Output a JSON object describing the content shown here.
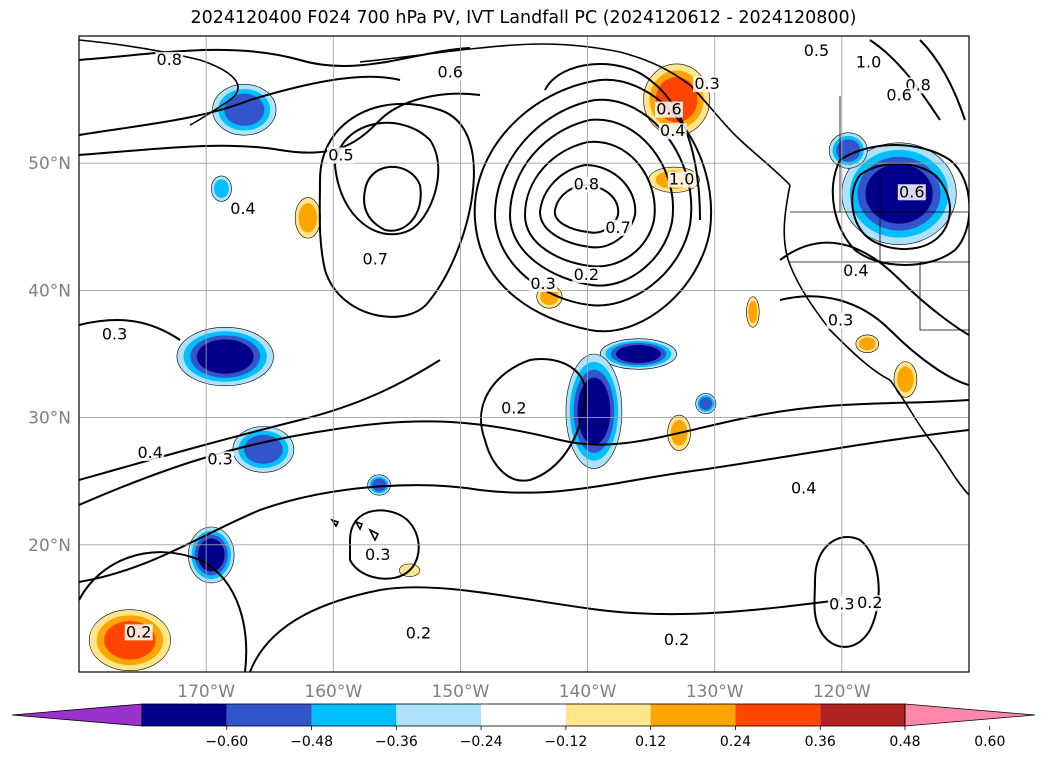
{
  "title": "2024120400 F024 700 hPa PV, IVT Landfall PC (2024120612 - 2024120800)",
  "map": {
    "lat_labels": [
      "50°N",
      "40°N",
      "30°N",
      "20°N"
    ],
    "lon_labels": [
      "170°W",
      "160°W",
      "150°W",
      "140°W",
      "130°W",
      "120°W"
    ],
    "gridlines": true
  },
  "contour_labels": [
    {
      "text": "0.8",
      "lon": -172.9,
      "lat": 57.8
    },
    {
      "text": "0.6",
      "lon": -150.8,
      "lat": 56.8
    },
    {
      "text": "0.3",
      "lon": -130.6,
      "lat": 55.9
    },
    {
      "text": "0.5",
      "lon": -159.4,
      "lat": 50.3
    },
    {
      "text": "0.4",
      "lon": -167.1,
      "lat": 46.1
    },
    {
      "text": "0.7",
      "lon": -156.7,
      "lat": 42.1
    },
    {
      "text": "0.6",
      "lon": -133.6,
      "lat": 53.9
    },
    {
      "text": "0.4",
      "lon": -133.3,
      "lat": 52.2
    },
    {
      "text": "1.0",
      "lon": -132.6,
      "lat": 48.4
    },
    {
      "text": "0.8",
      "lon": -140.1,
      "lat": 48.0
    },
    {
      "text": "0.7",
      "lon": -137.6,
      "lat": 44.6
    },
    {
      "text": "0.3",
      "lon": -143.5,
      "lat": 40.2
    },
    {
      "text": "0.2",
      "lon": -140.1,
      "lat": 40.9
    },
    {
      "text": "0.5",
      "lon": -122.0,
      "lat": 58.5
    },
    {
      "text": "1.0",
      "lon": -117.9,
      "lat": 57.6
    },
    {
      "text": "0.8",
      "lon": -114.0,
      "lat": 55.8
    },
    {
      "text": "0.6",
      "lon": -115.5,
      "lat": 55.0
    },
    {
      "text": "0.6",
      "lon": -114.5,
      "lat": 47.4
    },
    {
      "text": "0.4",
      "lon": -118.9,
      "lat": 41.2
    },
    {
      "text": "0.3",
      "lon": -120.1,
      "lat": 37.3
    },
    {
      "text": "0.3",
      "lon": -177.2,
      "lat": 36.2
    },
    {
      "text": "0.4",
      "lon": -174.4,
      "lat": 26.9
    },
    {
      "text": "0.3",
      "lon": -168.9,
      "lat": 26.4
    },
    {
      "text": "0.2",
      "lon": -145.8,
      "lat": 30.4
    },
    {
      "text": "0.4",
      "lon": -123.0,
      "lat": 24.1
    },
    {
      "text": "0.3",
      "lon": -156.5,
      "lat": 18.9
    },
    {
      "text": "0.2",
      "lon": -153.3,
      "lat": 12.7
    },
    {
      "text": "0.2",
      "lon": -175.3,
      "lat": 12.8
    },
    {
      "text": "0.2",
      "lon": -133.0,
      "lat": 12.2
    },
    {
      "text": "0.3",
      "lon": -120.0,
      "lat": 15.0
    },
    {
      "text": "0.2",
      "lon": -117.8,
      "lat": 15.1
    }
  ],
  "shaded_regions": [
    {
      "value": -0.36,
      "lon": -167.0,
      "lat": 54.2,
      "rx_deg": 2.5,
      "ry_deg": 2.0
    },
    {
      "value": -0.24,
      "lon": -168.8,
      "lat": 48.0,
      "rx_deg": 0.8,
      "ry_deg": 1.0
    },
    {
      "value": 0.24,
      "lon": -162.0,
      "lat": 45.7,
      "rx_deg": 1.0,
      "ry_deg": 1.6
    },
    {
      "value": 0.36,
      "lon": -133.0,
      "lat": 55.0,
      "rx_deg": 2.6,
      "ry_deg": 2.8
    },
    {
      "value": 0.24,
      "lon": -133.2,
      "lat": 48.7,
      "rx_deg": 2.0,
      "ry_deg": 1.0
    },
    {
      "value": 0.24,
      "lon": -143.0,
      "lat": 39.5,
      "rx_deg": 1.0,
      "ry_deg": 0.9
    },
    {
      "value": 0.24,
      "lon": -127.0,
      "lat": 38.3,
      "rx_deg": 0.5,
      "ry_deg": 1.2
    },
    {
      "value": -0.48,
      "lon": -115.5,
      "lat": 47.6,
      "rx_deg": 4.5,
      "ry_deg": 4.0
    },
    {
      "value": -0.36,
      "lon": -119.5,
      "lat": 51.0,
      "rx_deg": 1.5,
      "ry_deg": 1.4
    },
    {
      "value": -0.48,
      "lon": -168.5,
      "lat": 34.8,
      "rx_deg": 3.8,
      "ry_deg": 2.3
    },
    {
      "value": -0.36,
      "lon": -165.5,
      "lat": 27.5,
      "rx_deg": 2.4,
      "ry_deg": 1.8
    },
    {
      "value": -0.48,
      "lon": -136.0,
      "lat": 35.0,
      "rx_deg": 3.0,
      "ry_deg": 1.2
    },
    {
      "value": -0.48,
      "lon": -139.5,
      "lat": 30.5,
      "rx_deg": 2.2,
      "ry_deg": 4.5
    },
    {
      "value": 0.24,
      "lon": -132.8,
      "lat": 28.8,
      "rx_deg": 0.9,
      "ry_deg": 1.4
    },
    {
      "value": -0.36,
      "lon": -130.7,
      "lat": 31.1,
      "rx_deg": 0.8,
      "ry_deg": 0.8
    },
    {
      "value": -0.36,
      "lon": -156.4,
      "lat": 24.7,
      "rx_deg": 0.9,
      "ry_deg": 0.8
    },
    {
      "value": -0.48,
      "lon": -169.6,
      "lat": 19.2,
      "rx_deg": 1.8,
      "ry_deg": 2.2
    },
    {
      "value": 0.36,
      "lon": -176.0,
      "lat": 12.5,
      "rx_deg": 3.2,
      "ry_deg": 2.4
    },
    {
      "value": 0.24,
      "lon": -118.0,
      "lat": 35.8,
      "rx_deg": 0.9,
      "ry_deg": 0.7
    },
    {
      "value": 0.24,
      "lon": -115.0,
      "lat": 33.0,
      "rx_deg": 0.9,
      "ry_deg": 1.4
    },
    {
      "value": 0.12,
      "lon": -154.0,
      "lat": 18.0,
      "rx_deg": 0.8,
      "ry_deg": 0.5
    }
  ],
  "colorbar": {
    "levels": [
      -0.6,
      -0.48,
      -0.36,
      -0.24,
      -0.12,
      0.12,
      0.24,
      0.36,
      0.48,
      0.6
    ],
    "tick_labels": [
      "−0.60",
      "−0.48",
      "−0.36",
      "−0.24",
      "−0.12",
      "0.12",
      "0.24",
      "0.36",
      "0.48",
      "0.60"
    ],
    "colors": [
      "#9933cc",
      "#00008b",
      "#3355cc",
      "#00bfff",
      "#ade2fa",
      "#ffffff",
      "#ffe68c",
      "#ffa500",
      "#ff4500",
      "#b22222",
      "#ff88aa"
    ],
    "extend": "both"
  }
}
